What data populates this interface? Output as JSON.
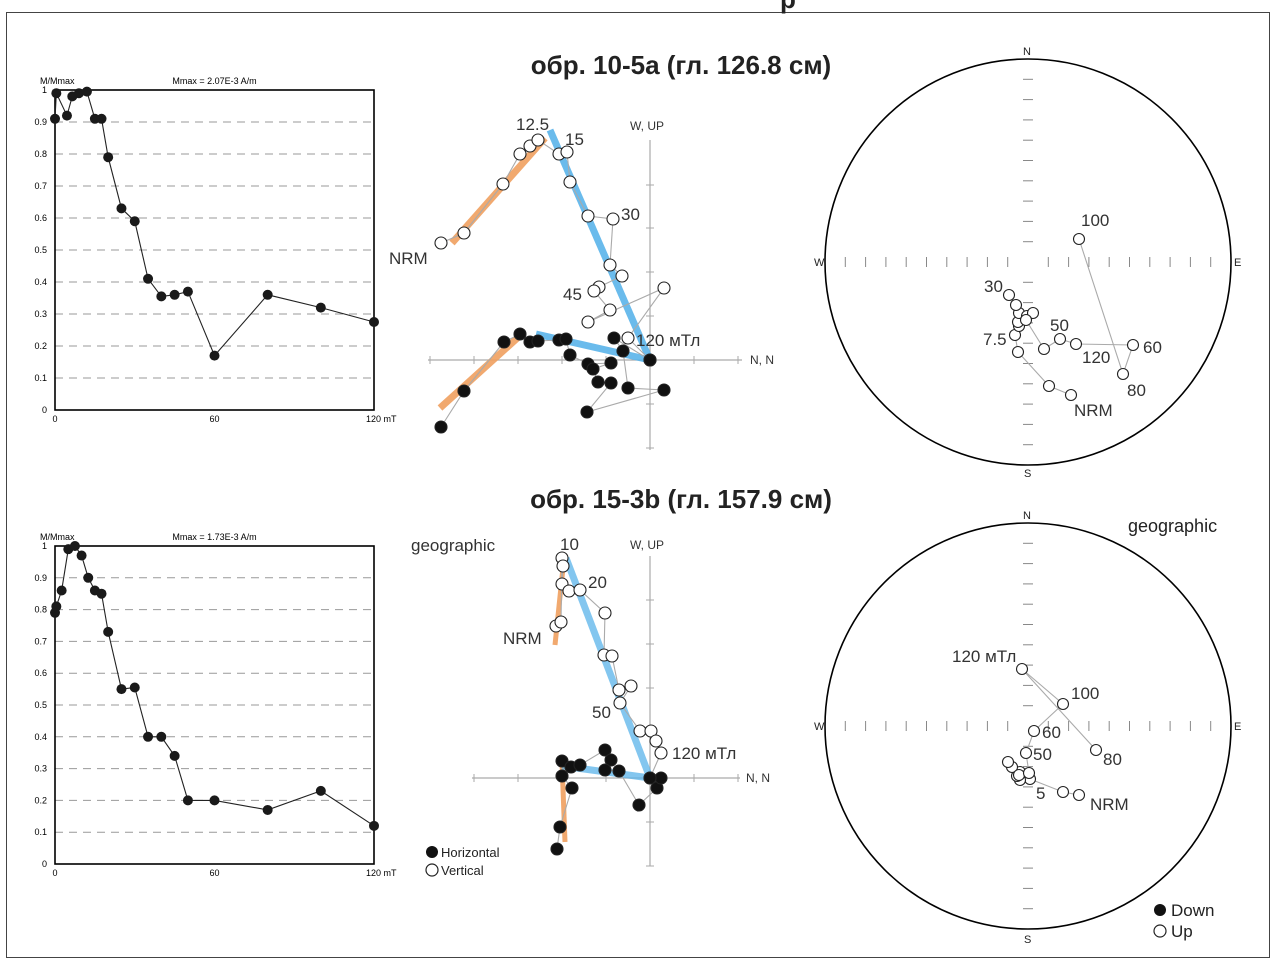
{
  "page": {
    "partial_header": "р"
  },
  "samples": [
    {
      "title": "обр. 10-5а (гл. 126.8 см)",
      "demag": {
        "ylabel": "M/Mmax",
        "mmax": "Mmax = 2.07E-3 A/m",
        "xticks": [
          "0",
          "60",
          "120 mT"
        ],
        "yticks": [
          "0",
          "0.1",
          "0.2",
          "0.3",
          "0.4",
          "0.5",
          "0.6",
          "0.7",
          "0.8",
          "0.9",
          "1"
        ]
      },
      "zijd": {
        "axis_up": "W, UP",
        "axis_n": "N, N",
        "labels": [
          "12.5",
          "15",
          "30",
          "45",
          "120 мТл",
          "NRM"
        ]
      },
      "stereo": {
        "north": "N",
        "south": "S",
        "west": "W",
        "east": "E",
        "labels": [
          "100",
          "30",
          "50",
          "7.5",
          "60",
          "120",
          "80",
          "NRM"
        ]
      }
    },
    {
      "title": "обр. 15-3b (гл. 157.9 см)",
      "demag": {
        "ylabel": "M/Mmax",
        "mmax": "Mmax = 1.73E-3 A/m",
        "xticks": [
          "0",
          "60",
          "120 mT"
        ],
        "yticks": [
          "0",
          "0.1",
          "0.2",
          "0.3",
          "0.4",
          "0.5",
          "0.6",
          "0.7",
          "0.8",
          "0.9",
          "1"
        ]
      },
      "zijd": {
        "axis_up": "W, UP",
        "axis_n": "N, N",
        "labels": [
          "geographic",
          "10",
          "20",
          "NRM",
          "50",
          "120 мТл"
        ]
      },
      "stereo": {
        "north": "N",
        "south": "S",
        "west": "W",
        "east": "E",
        "coord": "geographic",
        "labels": [
          "120 мТл",
          "100",
          "60",
          "50",
          "80",
          "5",
          "NRM"
        ]
      }
    }
  ],
  "legend_zijd": {
    "filled": "Horizontal",
    "open": "Vertical"
  },
  "legend_stereo": {
    "filled": "Down",
    "open": "Up"
  },
  "colors": {
    "pca_early": "#f0a060",
    "pca_late": "#5ab4ea",
    "line": "#999999"
  },
  "chart_data": [
    {
      "type": "line",
      "title": "",
      "xlabel": "",
      "ylabel": "M/Mmax",
      "xlim": [
        0,
        120
      ],
      "ylim": [
        0,
        1
      ],
      "x": [
        0,
        0.5,
        4.5,
        6.5,
        9,
        12,
        15,
        17.5,
        20,
        25,
        30,
        35,
        40,
        45,
        50,
        60,
        80,
        100,
        120
      ],
      "values": [
        0.91,
        0.99,
        0.92,
        0.98,
        0.99,
        0.995,
        0.91,
        0.91,
        0.79,
        0.63,
        0.59,
        0.41,
        0.355,
        0.36,
        0.37,
        0.17,
        0.36,
        0.32,
        0.275
      ]
    },
    {
      "type": "line",
      "title": "",
      "xlabel": "",
      "ylabel": "M/Mmax",
      "xlim": [
        0,
        120
      ],
      "ylim": [
        0,
        1
      ],
      "x": [
        0,
        0.5,
        2.5,
        5,
        7.5,
        10,
        12.5,
        15,
        17.5,
        20,
        25,
        30,
        35,
        40,
        45,
        50,
        60,
        80,
        100,
        120
      ],
      "values": [
        0.79,
        0.81,
        0.86,
        0.99,
        1.0,
        0.97,
        0.9,
        0.86,
        0.85,
        0.73,
        0.55,
        0.555,
        0.4,
        0.4,
        0.34,
        0.2,
        0.2,
        0.17,
        0.23,
        0.12
      ]
    }
  ]
}
